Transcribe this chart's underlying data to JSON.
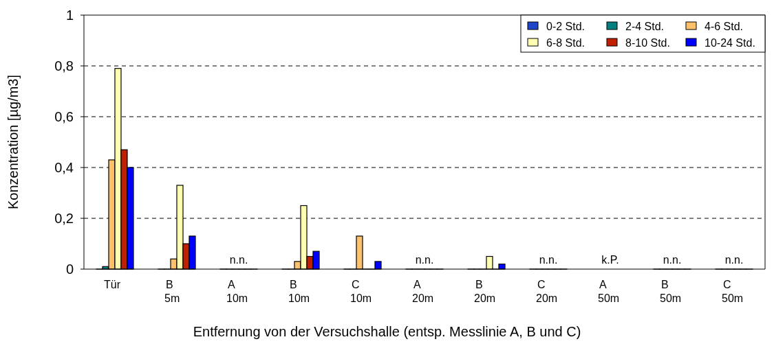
{
  "chart_data": {
    "type": "bar",
    "xlabel": "Entfernung von der Versuchshalle (entsp. Messlinie A, B und C)",
    "ylabel": "Konzentration [µg/m3]",
    "categories": [
      "Tür",
      "B 5m",
      "A 10m",
      "B 10m",
      "C 10m",
      "A 20m",
      "B 20m",
      "C 20m",
      "A 50m",
      "B 50m",
      "C 50m"
    ],
    "series": [
      {
        "name": "0-2 Std.",
        "color": "#1f45c8",
        "values": [
          0,
          0,
          0,
          0,
          0,
          0,
          0,
          0,
          null,
          0,
          0
        ]
      },
      {
        "name": "2-4 Std.",
        "color": "#008080",
        "values": [
          0.01,
          0,
          0,
          0,
          0,
          0,
          0,
          0,
          null,
          0,
          0
        ]
      },
      {
        "name": "4-6 Std.",
        "color": "#ffc06b",
        "values": [
          0.43,
          0.04,
          0,
          0.03,
          0.13,
          0,
          0,
          0,
          null,
          0,
          0
        ]
      },
      {
        "name": "6-8 Std.",
        "color": "#ffffb4",
        "values": [
          0.79,
          0.33,
          0,
          0.25,
          0,
          0,
          0.05,
          0,
          null,
          0,
          0
        ]
      },
      {
        "name": "8-10 Std.",
        "color": "#c02000",
        "values": [
          0.47,
          0.1,
          0,
          0.05,
          0,
          0,
          0,
          0,
          null,
          0,
          0
        ]
      },
      {
        "name": "10-24 Std.",
        "color": "#0000ff",
        "values": [
          0.4,
          0.13,
          0,
          0.07,
          0.03,
          0,
          0.02,
          0,
          null,
          0,
          0
        ]
      }
    ],
    "ylim": [
      0,
      1
    ],
    "yticks": [
      0,
      {
        "value": 0.2,
        "label": "0,2"
      },
      {
        "value": 0.4,
        "label": "0,4"
      },
      {
        "value": 0.6,
        "label": "0,6"
      },
      {
        "value": 0.8,
        "label": "0,8"
      },
      1
    ],
    "grid": "y",
    "legend": "top right",
    "annotations": [
      "n.n.",
      "n.n.",
      "n.n.",
      "k.P.",
      "n.n.",
      "n.n."
    ]
  }
}
